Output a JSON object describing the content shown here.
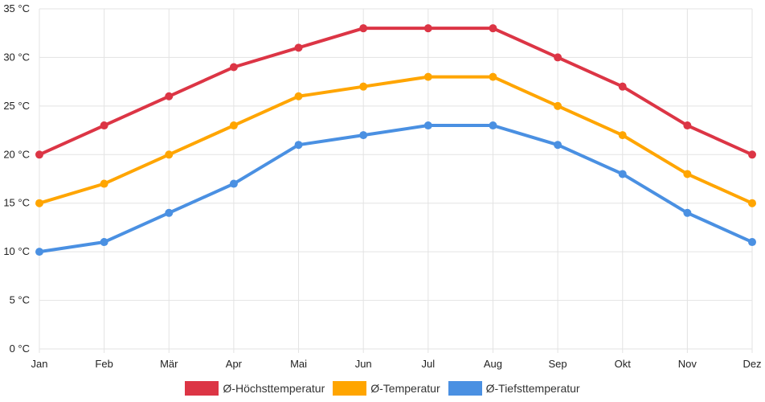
{
  "chart_data": {
    "type": "line",
    "categories": [
      "Jan",
      "Feb",
      "Mär",
      "Apr",
      "Mai",
      "Jun",
      "Jul",
      "Aug",
      "Sep",
      "Okt",
      "Nov",
      "Dez"
    ],
    "ylim": [
      0,
      35
    ],
    "y_ticks": [
      0,
      5,
      10,
      15,
      20,
      25,
      30,
      35
    ],
    "y_tick_labels": [
      "0 °C",
      "5 °C",
      "10 °C",
      "15 °C",
      "20 °C",
      "25 °C",
      "30 °C",
      "35 °C"
    ],
    "grid": true,
    "legend_position": "bottom",
    "series": [
      {
        "name": "Ø-Höchsttemperatur",
        "color": "#dc3545",
        "values": [
          20,
          23,
          26,
          29,
          31,
          33,
          33,
          33,
          30,
          27,
          23,
          20
        ]
      },
      {
        "name": "Ø-Temperatur",
        "color": "#ffa500",
        "values": [
          15,
          17,
          20,
          23,
          26,
          27,
          28,
          28,
          25,
          22,
          18,
          15
        ]
      },
      {
        "name": "Ø-Tiefsttemperatur",
        "color": "#4a90e2",
        "values": [
          10,
          11,
          14,
          17,
          21,
          22,
          23,
          23,
          21,
          18,
          14,
          11
        ]
      }
    ]
  }
}
